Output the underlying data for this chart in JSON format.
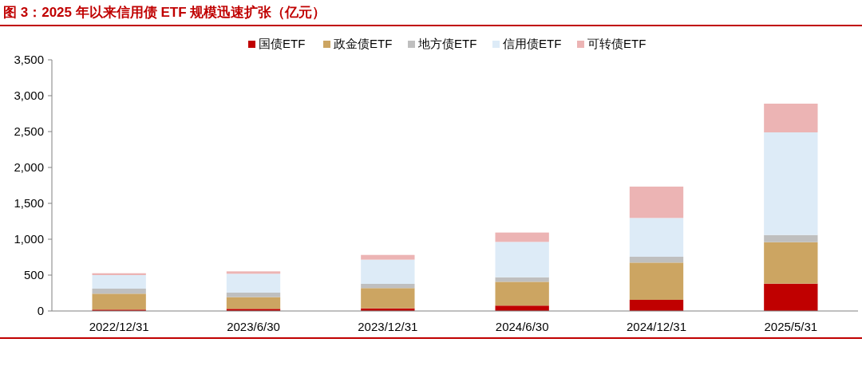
{
  "chart_data": {
    "type": "bar",
    "stacked": true,
    "title": "图 3：2025 年以来信用债 ETF 规模迅速扩张（亿元）",
    "categories": [
      "2022/12/31",
      "2023/6/30",
      "2023/12/31",
      "2024/6/30",
      "2024/12/31",
      "2025/5/31"
    ],
    "series": [
      {
        "name": "国债ETF",
        "color": "#c00000",
        "values": [
          19,
          30,
          37,
          75,
          156,
          381
        ]
      },
      {
        "name": "政金债ETF",
        "color": "#cca562",
        "values": [
          222,
          163,
          282,
          332,
          518,
          578
        ]
      },
      {
        "name": "地方债ETF",
        "color": "#bfbfbf",
        "values": [
          70,
          63,
          59,
          63,
          82,
          100
        ]
      },
      {
        "name": "信用债ETF",
        "color": "#ddebf7",
        "values": [
          189,
          263,
          337,
          493,
          540,
          1430
        ]
      },
      {
        "name": "可转债ETF",
        "color": "#ecb4b4",
        "values": [
          26,
          33,
          66,
          130,
          437,
          400
        ]
      }
    ],
    "ylim": [
      0,
      3500
    ],
    "yticks": [
      {
        "value": 0,
        "label": "0"
      },
      {
        "value": 500,
        "label": "500"
      },
      {
        "value": 1000,
        "label": "1,000"
      },
      {
        "value": 1500,
        "label": "1,500"
      },
      {
        "value": 2000,
        "label": "2,000"
      },
      {
        "value": 2500,
        "label": "2,500"
      },
      {
        "value": 3000,
        "label": "3,000"
      },
      {
        "value": 3500,
        "label": "3,500"
      }
    ],
    "grid": false,
    "legend": "top"
  }
}
